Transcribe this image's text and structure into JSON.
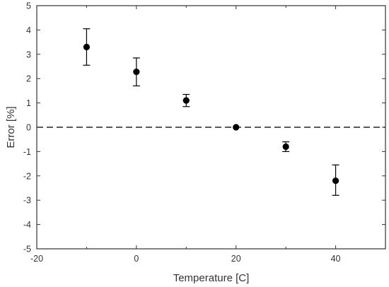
{
  "chart_data": {
    "type": "scatter",
    "title": "",
    "xlabel": "Temperature [C]",
    "ylabel": "Error [%]",
    "xlim": [
      -20,
      50
    ],
    "ylim": [
      -5,
      5
    ],
    "x_ticks": [
      -20,
      0,
      20,
      40
    ],
    "y_ticks": [
      -5,
      -4,
      -3,
      -2,
      -1,
      0,
      1,
      2,
      3,
      4,
      5
    ],
    "x_tick_labels": [
      "-20",
      "0",
      "20",
      "40"
    ],
    "y_tick_labels": [
      "-5",
      "-4",
      "-3",
      "-2",
      "-1",
      "0",
      "1",
      "2",
      "3",
      "4",
      "5"
    ],
    "reference_line": {
      "y": 0,
      "style": "dashed"
    },
    "grid": false,
    "legend": "none",
    "series": [
      {
        "points": [
          {
            "x": -10,
            "y": 3.3,
            "err_low": 2.55,
            "err_high": 4.05
          },
          {
            "x": 0,
            "y": 2.28,
            "err_low": 1.7,
            "err_high": 2.85
          },
          {
            "x": 10,
            "y": 1.1,
            "err_low": 0.85,
            "err_high": 1.35
          },
          {
            "x": 20,
            "y": 0.0,
            "err_low": 0.0,
            "err_high": 0.0
          },
          {
            "x": 30,
            "y": -0.8,
            "err_low": -1.0,
            "err_high": -0.6
          },
          {
            "x": 40,
            "y": -2.2,
            "err_low": -2.8,
            "err_high": -1.55
          }
        ]
      }
    ],
    "colors": {
      "marker": "#000000",
      "axis": "#333333",
      "text": "#333333"
    }
  }
}
